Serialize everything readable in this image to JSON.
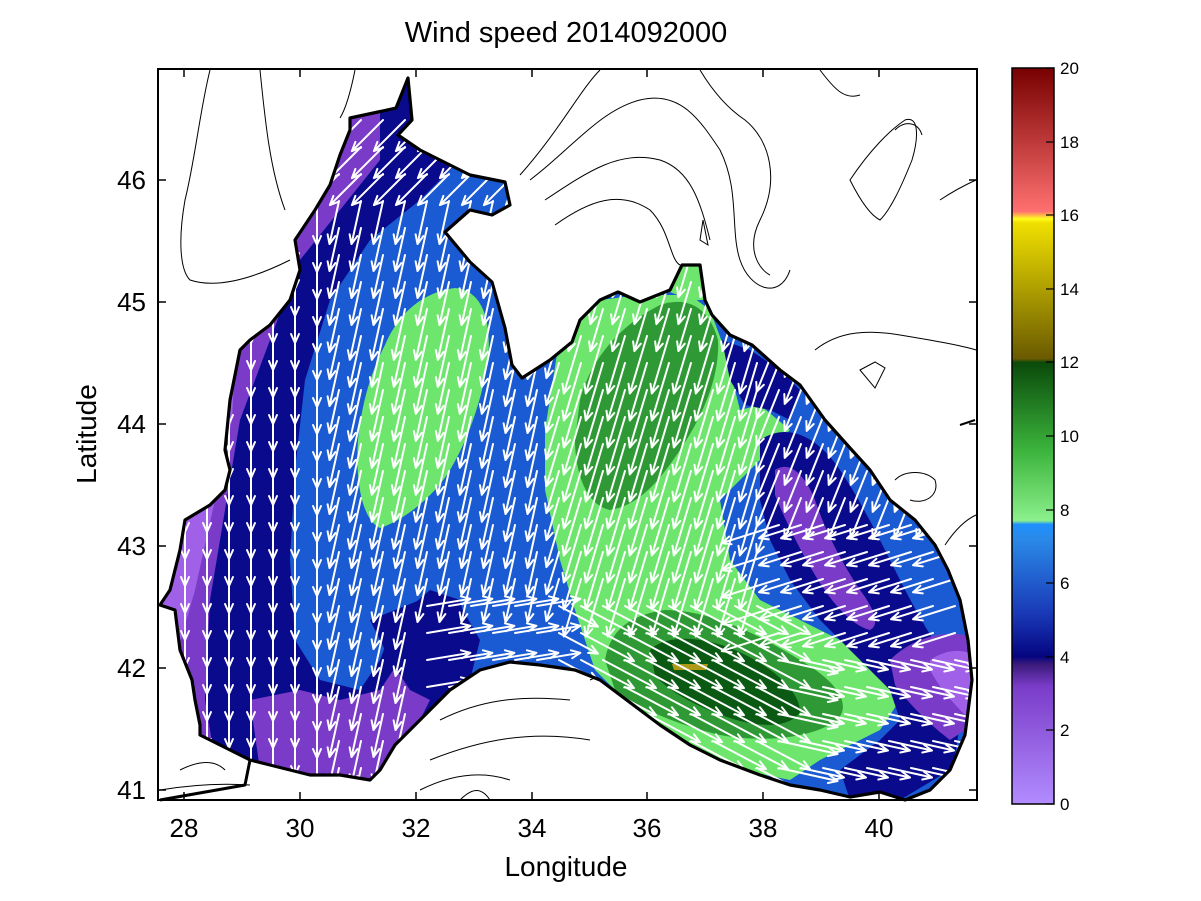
{
  "chart_data": {
    "type": "heatmap",
    "title": "Wind speed 2014092000",
    "xlabel": "Longitude",
    "ylabel": "Latitude",
    "xlim": [
      27.5,
      41.7
    ],
    "ylim": [
      40.9,
      46.95
    ],
    "x_ticks": [
      "28",
      "30",
      "32",
      "34",
      "36",
      "38",
      "40"
    ],
    "y_ticks": [
      "41",
      "42",
      "43",
      "44",
      "45",
      "46"
    ],
    "colorbar": {
      "range": [
        0,
        20
      ],
      "tick_labels": [
        "0",
        "2",
        "4",
        "6",
        "8",
        "10",
        "12",
        "14",
        "16",
        "18",
        "20"
      ],
      "bands": [
        {
          "from": 0,
          "to": 3.6,
          "color": "#7a3cc8"
        },
        {
          "from": 3.6,
          "to": 4.4,
          "color": "#0a0a8c"
        },
        {
          "from": 4.4,
          "to": 7.6,
          "color": "#1a5ad2"
        },
        {
          "from": 7.6,
          "to": 9.4,
          "color": "#6ee66e"
        },
        {
          "from": 9.4,
          "to": 12.0,
          "color": "#2a9a32"
        },
        {
          "from": 12.0,
          "to": 16.0,
          "color": "#9a8a10"
        },
        {
          "from": 16.0,
          "to": 20.0,
          "color": "#c8282a"
        }
      ]
    },
    "fields": [
      {
        "level": "2-4 m/s",
        "color": "#7a3cc8"
      },
      {
        "level": "4-5 m/s",
        "color": "#0a0a8c"
      },
      {
        "level": "5-7 m/s",
        "color": "#1a5ad2"
      },
      {
        "level": "8-9 m/s",
        "color": "#6ee66e"
      },
      {
        "level": "10-11 m/s",
        "color": "#2f9a35"
      },
      {
        "level": "12 m/s",
        "color": "#0a5a14"
      },
      {
        "level": "14 m/s",
        "color": "#b09818"
      }
    ],
    "vector_color": "#ffffff",
    "coastline_color": "#000000",
    "grid": false
  }
}
